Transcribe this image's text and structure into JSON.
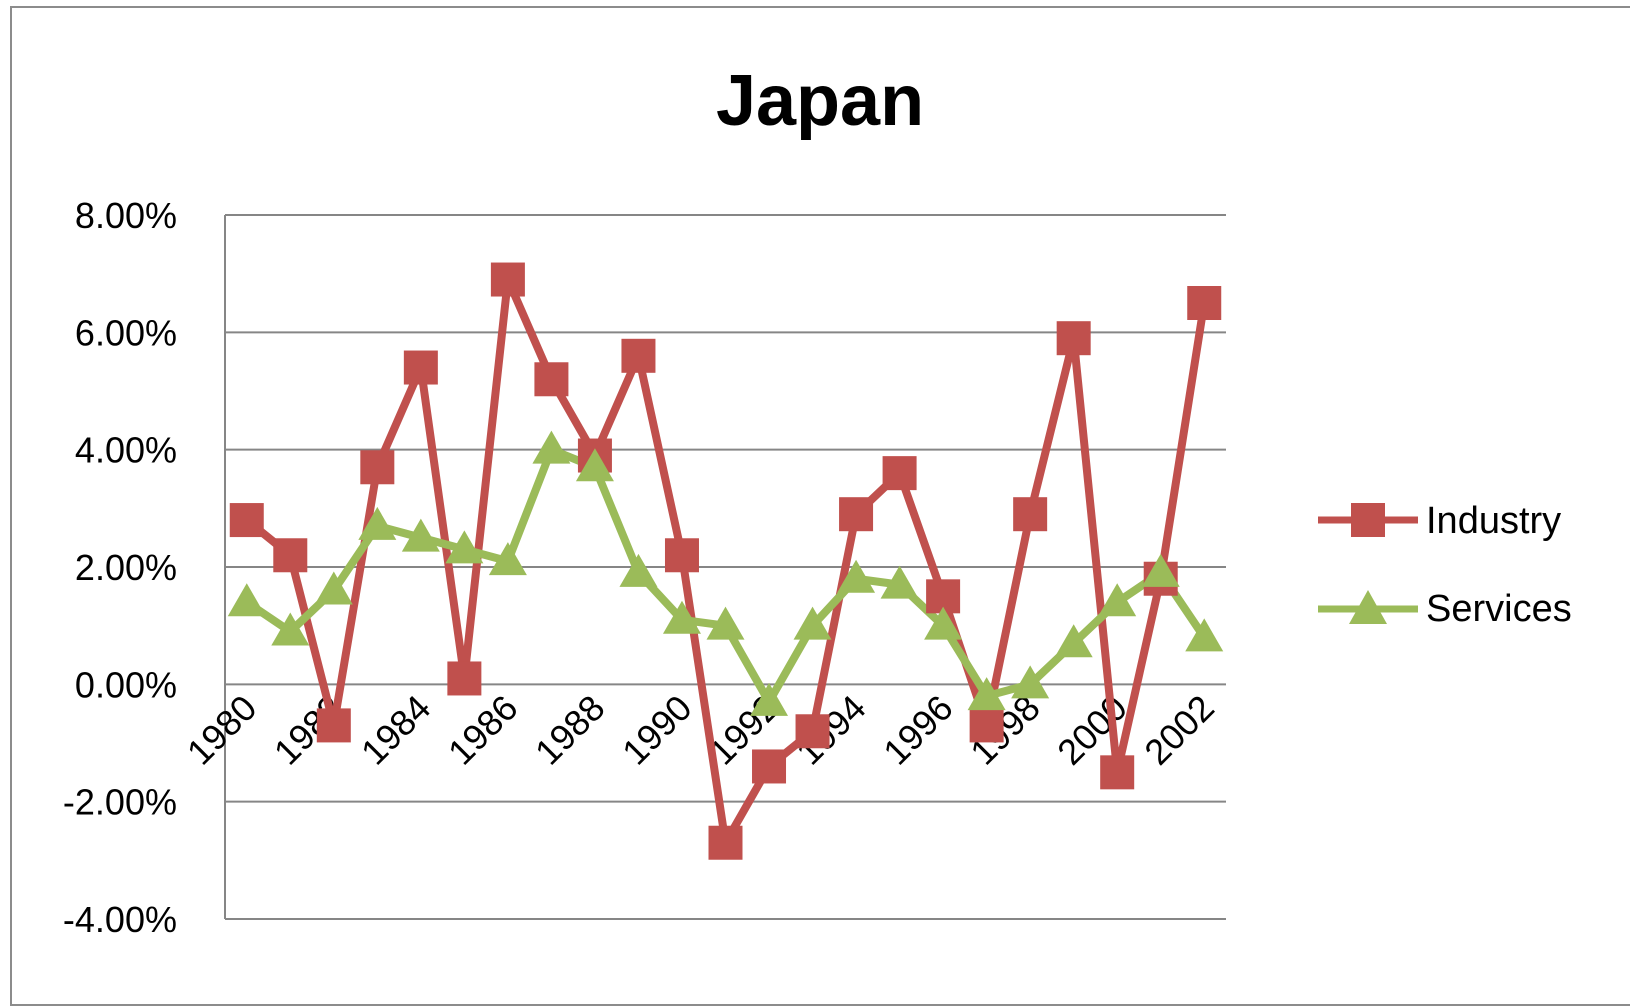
{
  "chart_data": {
    "type": "line",
    "title": "Japan",
    "xlabel": "",
    "ylabel": "",
    "x": [
      1980,
      1981,
      1982,
      1983,
      1984,
      1985,
      1986,
      1987,
      1988,
      1989,
      1990,
      1991,
      1992,
      1993,
      1994,
      1995,
      1996,
      1997,
      1998,
      1999,
      2000,
      2001,
      2002
    ],
    "x_tick_labels": [
      "1980",
      "1982",
      "1984",
      "1986",
      "1988",
      "1990",
      "1992",
      "1994",
      "1996",
      "1998",
      "2000",
      "2002"
    ],
    "y_tick_labels": [
      "8.00%",
      "6.00%",
      "4.00%",
      "2.00%",
      "0.00%",
      "-2.00%",
      "-4.00%"
    ],
    "ylim": [
      -4,
      8
    ],
    "y_unit": "%",
    "grid": true,
    "legend_position": "right",
    "series": [
      {
        "name": "Industry",
        "color": "#c0504d",
        "marker": "square",
        "values": [
          2.8,
          2.2,
          -0.7,
          3.7,
          5.4,
          0.1,
          6.9,
          5.2,
          3.9,
          5.6,
          2.2,
          -2.7,
          -1.4,
          -0.8,
          2.9,
          3.6,
          1.5,
          -0.7,
          2.9,
          5.9,
          -1.5,
          1.8,
          6.5
        ]
      },
      {
        "name": "Services",
        "color": "#9bbb59",
        "marker": "triangle",
        "values": [
          1.4,
          0.9,
          1.6,
          2.7,
          2.5,
          2.3,
          2.1,
          4.0,
          3.7,
          1.9,
          1.1,
          1.0,
          -0.3,
          1.0,
          1.8,
          1.7,
          1.0,
          -0.2,
          0.0,
          0.7,
          1.4,
          1.9,
          0.8
        ]
      }
    ]
  }
}
